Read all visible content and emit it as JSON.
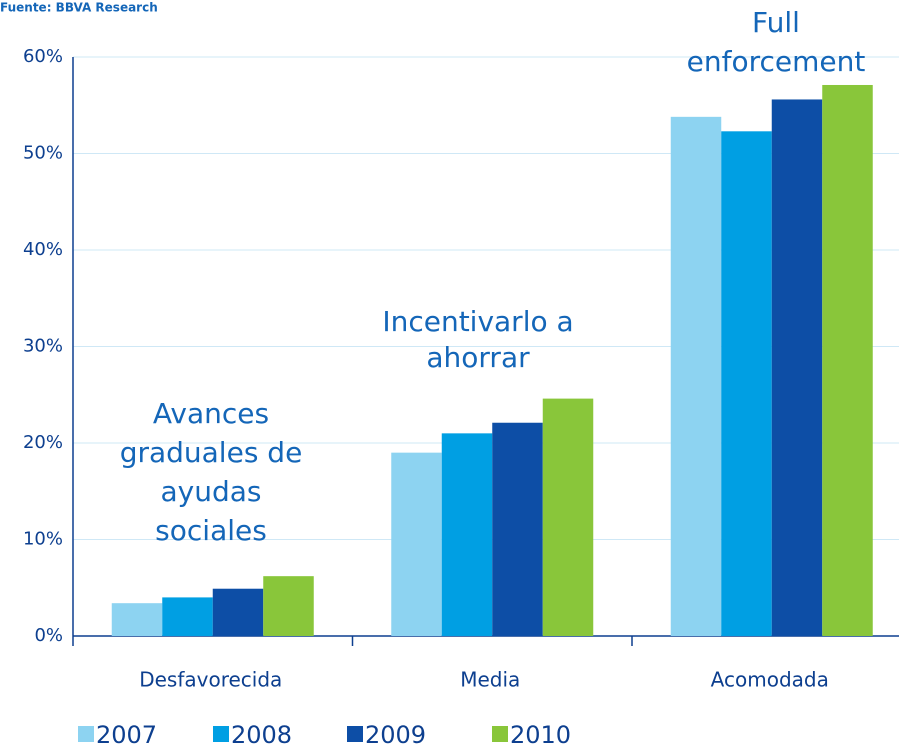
{
  "chart_data": {
    "type": "bar",
    "source": "Fuente: BBVA Research",
    "categories": [
      "Desfavorecida",
      "Media",
      "Acomodada"
    ],
    "series": [
      {
        "name": "2007",
        "color": "#8dd3f1",
        "values": [
          3.4,
          19.0,
          53.8
        ]
      },
      {
        "name": "2008",
        "color": "#009fe3",
        "values": [
          4.0,
          21.0,
          52.3
        ]
      },
      {
        "name": "2009",
        "color": "#0d4ea6",
        "values": [
          4.9,
          22.1,
          55.6
        ]
      },
      {
        "name": "2010",
        "color": "#89c63a",
        "values": [
          6.2,
          24.6,
          57.1
        ]
      }
    ],
    "ylim": [
      0,
      60
    ],
    "yticks": [
      {
        "value": 0,
        "label": "0%"
      },
      {
        "value": 10,
        "label": "10%"
      },
      {
        "value": 20,
        "label": "20%"
      },
      {
        "value": 30,
        "label": "30%"
      },
      {
        "value": 40,
        "label": "40%"
      },
      {
        "value": 50,
        "label": "50%"
      },
      {
        "value": 60,
        "label": "60%"
      }
    ],
    "grid": true,
    "annotations": [
      {
        "lines": [
          "Avances",
          "graduales de",
          "ayudas",
          "sociales"
        ]
      },
      {
        "lines": [
          "Incentivarlo a",
          "ahorrar"
        ]
      },
      {
        "lines": [
          "Full",
          "enforcement"
        ]
      }
    ]
  }
}
